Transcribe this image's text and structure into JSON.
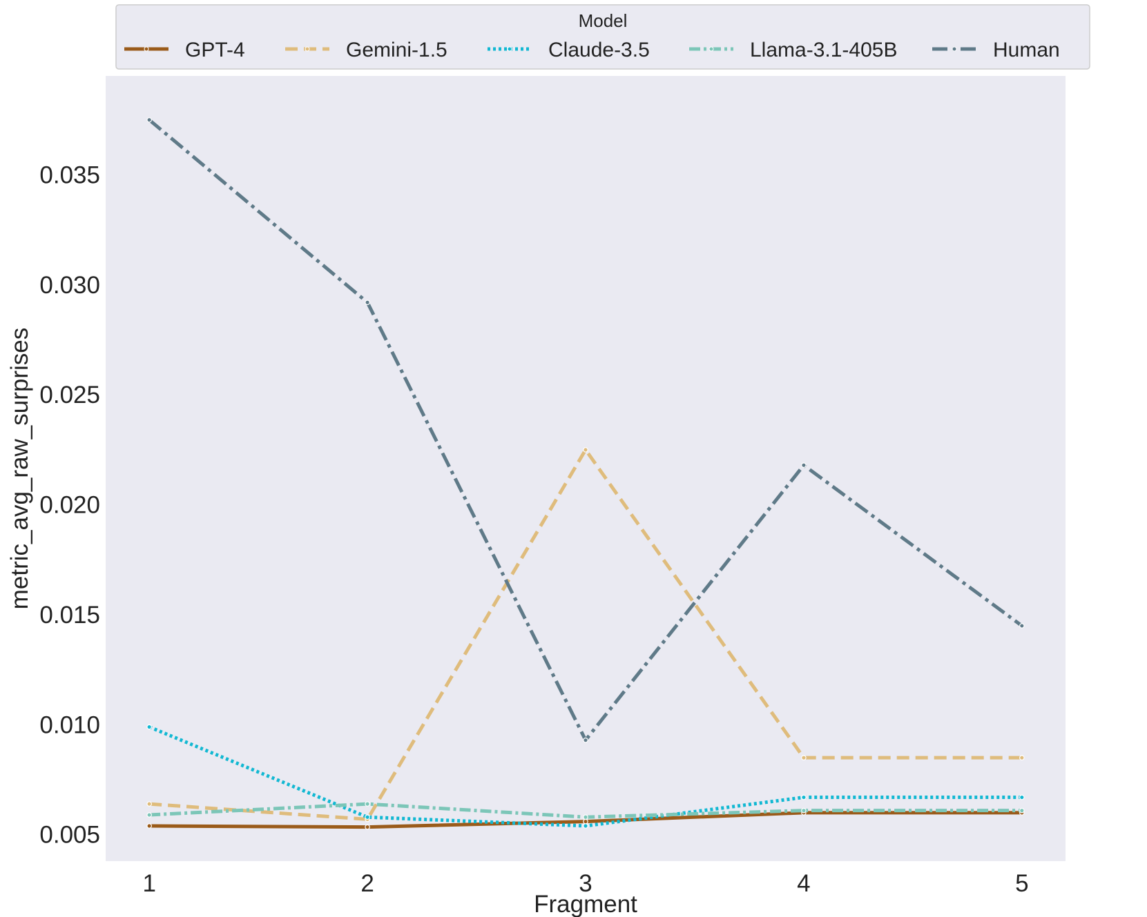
{
  "chart_data": {
    "type": "line",
    "title": "",
    "xlabel": "Fragment",
    "ylabel": "metric_avg_raw_surprises",
    "x": [
      1,
      2,
      3,
      4,
      5
    ],
    "x_tick_labels": [
      "1",
      "2",
      "3",
      "4",
      "5"
    ],
    "y_ticks": [
      0.005,
      0.01,
      0.015,
      0.02,
      0.025,
      0.03,
      0.035
    ],
    "y_tick_labels": [
      "0.005",
      "0.010",
      "0.015",
      "0.020",
      "0.025",
      "0.030",
      "0.035"
    ],
    "xlim": [
      0.8,
      5.2
    ],
    "ylim": [
      0.0038,
      0.0395
    ],
    "grid": false,
    "legend": {
      "title": "Model",
      "placement": "top",
      "columns": 5
    },
    "series": [
      {
        "name": "GPT-4",
        "color": "#9a5b1a",
        "dash": "solid",
        "values": [
          0.0054,
          0.00535,
          0.0056,
          0.006,
          0.006
        ]
      },
      {
        "name": "Gemini-1.5",
        "color": "#dfbc7c",
        "dash": "dashed",
        "values": [
          0.0064,
          0.0057,
          0.0225,
          0.0085,
          0.0085
        ]
      },
      {
        "name": "Claude-3.5",
        "color": "#12b8d2",
        "dash": "dotted",
        "values": [
          0.0099,
          0.0058,
          0.0054,
          0.0067,
          0.0067
        ]
      },
      {
        "name": "Llama-3.1-405B",
        "color": "#7cc6b8",
        "dash": "dashdot-dense",
        "values": [
          0.0059,
          0.0064,
          0.0058,
          0.0061,
          0.0061
        ]
      },
      {
        "name": "Human",
        "color": "#5f7a88",
        "dash": "dashdot",
        "values": [
          0.0375,
          0.0292,
          0.0093,
          0.0218,
          0.0145
        ]
      }
    ]
  }
}
